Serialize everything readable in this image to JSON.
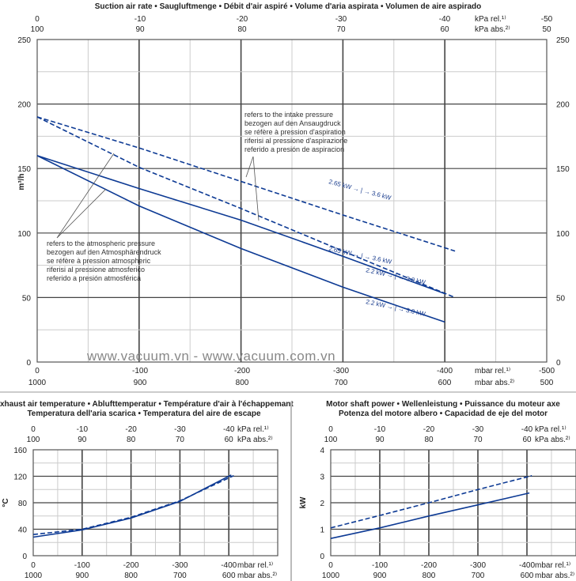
{
  "watermark": "www.vacuum.vn - www.vacuum.com.vn",
  "colors": {
    "series": "#0d3a94",
    "major_grid": "#444444",
    "minor_grid": "#cccccc"
  },
  "chart_data": [
    {
      "type": "line",
      "title": "Suction air rate  •  Saugluftmenge  •  Débit d'air aspiré  •  Volume d'aria aspirata  •  Volumen de aire aspirado",
      "ylabel": "m³/h",
      "xlim": [
        0,
        -500
      ],
      "ylim": [
        0,
        250
      ],
      "yticks": [
        0,
        50,
        100,
        150,
        200,
        250
      ],
      "x_bottom_rel": {
        "ticks": [
          "0",
          "-100",
          "-200",
          "-300",
          "-400",
          "-500"
        ],
        "unit": "mbar rel.¹⁾"
      },
      "x_bottom_abs": {
        "ticks": [
          "1000",
          "900",
          "800",
          "700",
          "600",
          "500"
        ],
        "unit": "mbar abs.²⁾"
      },
      "x_top_rel": {
        "ticks": [
          "0",
          "-10",
          "-20",
          "-30",
          "-40",
          "-50"
        ],
        "unit": "kPa rel.¹⁾"
      },
      "x_top_abs": {
        "ticks": [
          "100",
          "90",
          "80",
          "70",
          "60",
          "50"
        ],
        "unit": "kPa abs.²⁾"
      },
      "grid": true,
      "series": [
        {
          "name": "solid-upper",
          "dashed": false,
          "x": [
            0,
            -100,
            -200,
            -300,
            -400
          ],
          "y": [
            160,
            134.5,
            110,
            82,
            53
          ]
        },
        {
          "name": "solid-lower",
          "dashed": false,
          "x": [
            0,
            -100,
            -200,
            -300,
            -400
          ],
          "y": [
            160,
            121,
            88,
            58,
            31
          ]
        },
        {
          "name": "dashed-upper",
          "dashed": true,
          "x": [
            0,
            -100,
            -200,
            -300,
            -410
          ],
          "y": [
            190,
            166,
            140,
            114,
            86
          ]
        },
        {
          "name": "dashed-lower",
          "dashed": true,
          "x": [
            0,
            -100,
            -200,
            -300,
            -410
          ],
          "y": [
            190,
            151,
            119,
            86,
            50
          ]
        }
      ],
      "annotations": {
        "intake": [
          "refers to the intake pressure",
          "bezogen auf den Ansaugdruck",
          "se réfère à pression d'aspiration",
          "riferisi al pressione d'aspirazione",
          "referido a presión de aspiracion"
        ],
        "atmospheric": [
          "refers to the atmospheric pressure",
          "bezogen auf den Atmosphärendruck",
          "se réfère à pression atmospheric",
          "riferisi al pressione atmosferico",
          "referido a presión atmosférica"
        ],
        "power_labels": [
          "2.65 kW → | → 3.6 kW",
          "2.65 kW → | → 3.6 kW",
          "2.2 kW → | → 3.0 kW",
          "2.2 kW → | → 3.0 kW"
        ]
      }
    },
    {
      "type": "line",
      "title": [
        "Exhaust air temperature  •  Ablufttemperatur  •  Température d'air à l'échappemant",
        "Temperatura dell'aria scarica  •  Temperatura del aire de escape"
      ],
      "ylabel": "°C",
      "xlim": [
        0,
        -500
      ],
      "ylim": [
        0,
        160
      ],
      "yticks": [
        0,
        40,
        80,
        120,
        160
      ],
      "x_bottom_rel": {
        "ticks": [
          "0",
          "-100",
          "-200",
          "-300",
          "-400"
        ],
        "unit": "mbar rel.¹⁾"
      },
      "x_bottom_abs": {
        "ticks": [
          "1000",
          "900",
          "800",
          "700",
          "600"
        ],
        "unit": "mbar abs.²⁾"
      },
      "x_top_rel": {
        "ticks": [
          "0",
          "-10",
          "-20",
          "-30",
          "-40"
        ],
        "unit": "kPa rel.¹⁾"
      },
      "x_top_abs": {
        "ticks": [
          "100",
          "90",
          "80",
          "70",
          "60"
        ],
        "unit": "kPa abs.²⁾"
      },
      "grid": true,
      "series": [
        {
          "name": "solid",
          "dashed": false,
          "x": [
            0,
            -100,
            -200,
            -300,
            -405
          ],
          "y": [
            28,
            39,
            57,
            82,
            122
          ]
        },
        {
          "name": "dashed",
          "dashed": true,
          "x": [
            0,
            -100,
            -200,
            -300,
            -410
          ],
          "y": [
            32,
            40,
            58,
            83,
            121
          ]
        }
      ]
    },
    {
      "type": "line",
      "title": [
        "Motor shaft power  •  Wellenleistung  •  Puissance du moteur axe",
        "Potenza del motore albero  •  Capacidad de eje del motor"
      ],
      "ylabel": "kW",
      "xlim": [
        0,
        -500
      ],
      "ylim": [
        0,
        4
      ],
      "yticks": [
        0,
        1,
        2,
        3,
        4
      ],
      "x_bottom_rel": {
        "ticks": [
          "0",
          "-100",
          "-200",
          "-300",
          "-400"
        ],
        "unit": "mbar rel.¹⁾"
      },
      "x_bottom_abs": {
        "ticks": [
          "1000",
          "900",
          "800",
          "700",
          "600"
        ],
        "unit": "mbar abs.²⁾"
      },
      "x_top_rel": {
        "ticks": [
          "0",
          "-10",
          "-20",
          "-30",
          "-40"
        ],
        "unit": "kPa rel.¹⁾"
      },
      "x_top_abs": {
        "ticks": [
          "100",
          "90",
          "80",
          "70",
          "60"
        ],
        "unit": "kPa abs.²⁾"
      },
      "grid": true,
      "series": [
        {
          "name": "solid",
          "dashed": false,
          "x": [
            0,
            -100,
            -200,
            -300,
            -405
          ],
          "y": [
            0.65,
            1.05,
            1.5,
            1.92,
            2.37
          ]
        },
        {
          "name": "dashed",
          "dashed": true,
          "x": [
            0,
            -100,
            -200,
            -300,
            -410
          ],
          "y": [
            1.05,
            1.52,
            2.0,
            2.5,
            3.02
          ]
        }
      ]
    }
  ]
}
